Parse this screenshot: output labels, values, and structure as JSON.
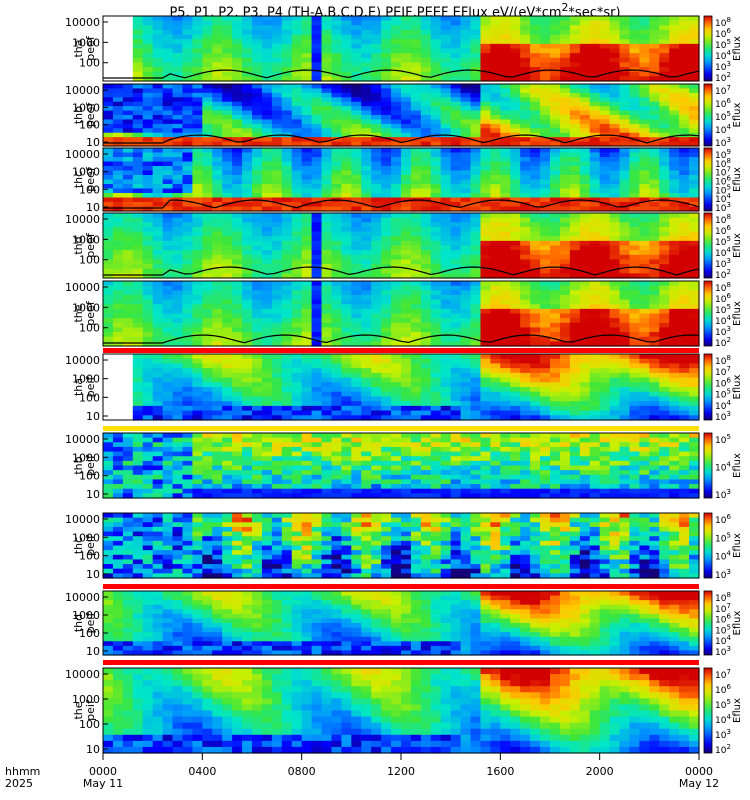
{
  "chart_data": {
    "type": "heatmap",
    "title": "P5, P1, P2, P3, P4 (TH-A,B,C,D,E) PEIF,PEEF EFlux eV/(eV*cm",
    "title_sup": "2",
    "title_tail": "*sec*sr)",
    "x_info": [
      "hhmm",
      "2025"
    ],
    "x_ticks": [
      {
        "label": "0000",
        "hours": 0,
        "date": "May 11"
      },
      {
        "label": "0400",
        "hours": 4,
        "date": ""
      },
      {
        "label": "0800",
        "hours": 8,
        "date": ""
      },
      {
        "label": "1200",
        "hours": 12,
        "date": ""
      },
      {
        "label": "1600",
        "hours": 16,
        "date": ""
      },
      {
        "label": "2000",
        "hours": 20,
        "date": ""
      },
      {
        "label": "0000",
        "hours": 24,
        "date": "May 12"
      }
    ],
    "x_range_hours": [
      0,
      24
    ],
    "colorscale": "rainbow (blue-green-yellow-red)",
    "colorbar_label": "Eflux",
    "panels": [
      {
        "name": "tha peef",
        "label1": "tha",
        "label2": "peef",
        "y_ticks": [
          "10000",
          "1000",
          "100"
        ],
        "cbar": [
          "10^8",
          "10^6",
          "10^5",
          "10^4",
          "10^3",
          "10^2"
        ],
        "signature": "electron",
        "density_contour": true,
        "gap_start_h": [
          0,
          1
        ]
      },
      {
        "name": "thb peef",
        "label1": "thb",
        "label2": "peef",
        "y_ticks": [
          "10000",
          "1000",
          "100",
          "10"
        ],
        "cbar": [
          "10^7",
          "10^6",
          "10^5",
          "10^4",
          "10^3"
        ],
        "signature": "electron_b",
        "density_contour": true
      },
      {
        "name": "thc peef",
        "label1": "thc",
        "label2": "peef",
        "y_ticks": [
          "10000",
          "1000",
          "100",
          "10"
        ],
        "cbar": [
          "10^9",
          "10^8",
          "10^7",
          "10^6",
          "10^5",
          "10^4",
          "10^3"
        ],
        "signature": "electron_c",
        "density_contour": true
      },
      {
        "name": "thd peef",
        "label1": "thd",
        "label2": "peef",
        "y_ticks": [
          "10000",
          "1000",
          "100"
        ],
        "cbar": [
          "10^8",
          "10^6",
          "10^5",
          "10^4",
          "10^3",
          "10^2"
        ],
        "signature": "electron",
        "density_contour": true
      },
      {
        "name": "the peef",
        "label1": "the",
        "label2": "peef",
        "y_ticks": [
          "10000",
          "1000",
          "100"
        ],
        "cbar": [
          "10^8",
          "10^6",
          "10^5",
          "10^4",
          "10^3",
          "10^2"
        ],
        "signature": "electron",
        "density_contour": true
      },
      {
        "name": "tha peif",
        "label1": "tha",
        "label2": "peif",
        "y_ticks": [
          "10000",
          "1000",
          "100",
          "10"
        ],
        "cbar": [
          "10^8",
          "10^7",
          "10^6",
          "10^5",
          "10^4",
          "10^3"
        ],
        "signature": "ion",
        "gap_start_h": [
          0,
          1
        ]
      },
      {
        "name": "thb peif",
        "label1": "thb",
        "label2": "peif",
        "y_ticks": [
          "10000",
          "1000",
          "100",
          "10"
        ],
        "cbar": [
          "10^5",
          "10^4",
          "10^3"
        ],
        "signature": "ion_b"
      },
      {
        "name": "thc peif",
        "label1": "thc",
        "label2": "peif",
        "y_ticks": [
          "10000",
          "1000",
          "100",
          "10"
        ],
        "cbar": [
          "10^6",
          "10^5",
          "10^4",
          "10^3"
        ],
        "signature": "ion_c"
      },
      {
        "name": "thd peif",
        "label1": "thd",
        "label2": "peif",
        "y_ticks": [
          "10000",
          "1000",
          "100",
          "10"
        ],
        "cbar": [
          "10^8",
          "10^7",
          "10^6",
          "10^5",
          "10^4",
          "10^3"
        ],
        "signature": "ion"
      },
      {
        "name": "the peif",
        "label1": "the",
        "label2": "peif",
        "y_ticks": [
          "10000",
          "1000",
          "100",
          "10"
        ],
        "cbar": [
          "10^7",
          "10^6",
          "10^5",
          "10^4",
          "10^3",
          "10^2"
        ],
        "signature": "ion"
      }
    ]
  }
}
